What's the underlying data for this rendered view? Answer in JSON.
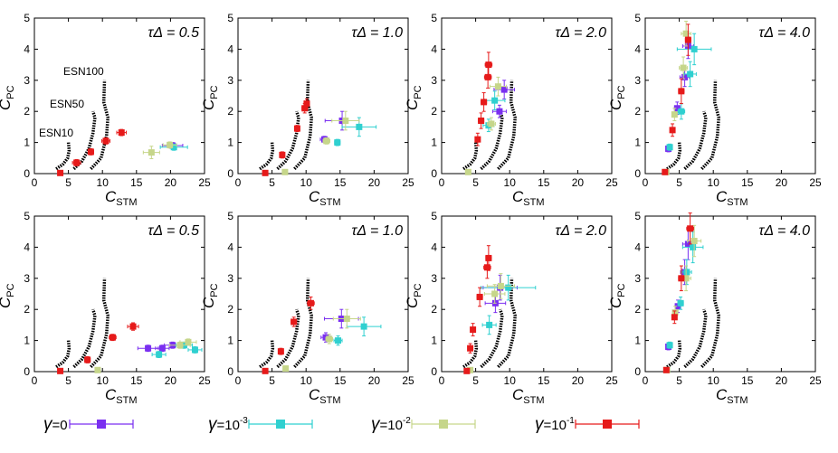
{
  "figure": {
    "x_axis": {
      "main": "C",
      "sub": "STM",
      "range": [
        0,
        25
      ],
      "ticks": [
        "0",
        "5",
        "10",
        "15",
        "20",
        "25"
      ]
    },
    "y_axis": {
      "main": "C",
      "sub": "PC",
      "range": [
        0,
        5
      ],
      "ticks": [
        "0",
        "1",
        "2",
        "3",
        "4",
        "5"
      ]
    },
    "curve_labels": [
      "ESN100",
      "ESN50",
      "ESN10"
    ],
    "panel_labels": [
      "τΔ = 0.5",
      "τΔ = 1.0",
      "τΔ = 2.0",
      "τΔ = 4.0",
      "τΔ = 0.5",
      "τΔ = 1.0",
      "τΔ = 2.0",
      "τΔ = 4.0"
    ],
    "legend": [
      {
        "sym": "γ",
        "text": "=0",
        "sup": "",
        "color": "#7a2ff0"
      },
      {
        "sym": "γ",
        "text": "=10",
        "sup": "-3",
        "color": "#2fd0d0"
      },
      {
        "sym": "γ",
        "text": "=10",
        "sup": "-2",
        "color": "#c6d68a"
      },
      {
        "sym": "γ",
        "text": "=10",
        "sup": "-1",
        "color": "#e61a1a"
      }
    ]
  },
  "chart_data": {
    "type": "scatter",
    "series_colors": [
      "#7a2ff0",
      "#2fd0d0",
      "#c6d68a",
      "#e61a1a"
    ],
    "esn_curves": [
      {
        "name": "ESN10",
        "points": [
          [
            3.2,
            0.15
          ],
          [
            4.2,
            0.3
          ],
          [
            4.9,
            0.5
          ],
          [
            5.1,
            0.75
          ],
          [
            5.0,
            1.0
          ]
        ]
      },
      {
        "name": "ESN50",
        "points": [
          [
            5.8,
            0.15
          ],
          [
            7.0,
            0.4
          ],
          [
            8.0,
            0.8
          ],
          [
            8.6,
            1.3
          ],
          [
            8.9,
            1.8
          ],
          [
            8.6,
            2.0
          ]
        ]
      },
      {
        "name": "ESN100",
        "points": [
          [
            8.3,
            0.15
          ],
          [
            9.8,
            0.5
          ],
          [
            10.6,
            1.2
          ],
          [
            10.8,
            1.8
          ],
          [
            10.2,
            2.3
          ],
          [
            10.3,
            3.0
          ]
        ]
      }
    ],
    "panels": [
      {
        "series": [
          {
            "points": [
              [
                20.3,
                0.9,
                1.5,
                0.1
              ]
            ]
          },
          {
            "points": [
              [
                20.5,
                0.85,
                2.0,
                0.1
              ]
            ]
          },
          {
            "points": [
              [
                17.2,
                0.68,
                1.2,
                0.2
              ],
              [
                19.9,
                0.92,
                1.0,
                0.1
              ]
            ]
          },
          {
            "points": [
              [
                3.8,
                0.02,
                0.3,
                0.02
              ],
              [
                6.2,
                0.35,
                0.6,
                0.1
              ],
              [
                8.3,
                0.7,
                0.4,
                0.1
              ],
              [
                10.5,
                1.05,
                0.6,
                0.1
              ],
              [
                12.8,
                1.32,
                0.7,
                0.1
              ]
            ]
          }
        ]
      },
      {
        "series": [
          {
            "points": [
              [
                15.3,
                1.7,
                2.5,
                0.3
              ],
              [
                12.7,
                1.1,
                0.6,
                0.1
              ]
            ]
          },
          {
            "points": [
              [
                17.8,
                1.5,
                2.5,
                0.3
              ],
              [
                14.6,
                1.0,
                0.4,
                0.1
              ]
            ]
          },
          {
            "points": [
              [
                15.8,
                1.7,
                2.0,
                0.3
              ],
              [
                13.0,
                1.05,
                0.5,
                0.1
              ],
              [
                6.9,
                0.05,
                0.3,
                0.03
              ]
            ]
          },
          {
            "points": [
              [
                4.0,
                0.02,
                0.3,
                0.02
              ],
              [
                6.5,
                0.6,
                0.3,
                0.1
              ],
              [
                8.7,
                1.45,
                0.3,
                0.1
              ],
              [
                9.8,
                2.1,
                0.4,
                0.15
              ],
              [
                10.1,
                2.25,
                0.4,
                0.15
              ]
            ]
          }
        ]
      },
      {
        "series": [
          {
            "points": [
              [
                9.2,
                2.7,
                1.5,
                0.3
              ],
              [
                8.5,
                2.0,
                1.0,
                0.2
              ]
            ]
          },
          {
            "points": [
              [
                7.8,
                2.35,
                1.5,
                0.3
              ],
              [
                6.9,
                1.55,
                0.8,
                0.2
              ]
            ]
          },
          {
            "points": [
              [
                8.3,
                2.8,
                1.2,
                0.3
              ],
              [
                7.3,
                1.6,
                0.6,
                0.2
              ],
              [
                3.9,
                0.05,
                0.2,
                0.03
              ]
            ]
          },
          {
            "points": [
              [
                5.3,
                1.1,
                0.3,
                0.2
              ],
              [
                5.8,
                1.7,
                0.4,
                0.25
              ],
              [
                6.2,
                2.3,
                0.4,
                0.3
              ],
              [
                6.8,
                3.1,
                0.5,
                0.35
              ],
              [
                6.9,
                3.5,
                0.5,
                0.4
              ]
            ]
          }
        ]
      },
      {
        "series": [
          {
            "points": [
              [
                6.3,
                4.1,
                0.8,
                0.4
              ],
              [
                5.8,
                3.1,
                0.7,
                0.3
              ],
              [
                4.7,
                2.1,
                0.4,
                0.2
              ],
              [
                3.4,
                0.8,
                0.2,
                0.1
              ]
            ]
          },
          {
            "points": [
              [
                7.2,
                4.0,
                2.5,
                0.5
              ],
              [
                6.6,
                3.2,
                0.9,
                0.4
              ],
              [
                5.3,
                2.0,
                0.5,
                0.25
              ],
              [
                3.6,
                0.85,
                0.3,
                0.1
              ]
            ]
          },
          {
            "points": [
              [
                6.0,
                4.5,
                0.7,
                0.4
              ],
              [
                5.6,
                3.4,
                0.6,
                0.35
              ],
              [
                4.3,
                1.9,
                0.3,
                0.2
              ],
              [
                3.1,
                0.05,
                0.2,
                0.03
              ]
            ]
          },
          {
            "points": [
              [
                6.3,
                4.3,
                0.4,
                0.5
              ],
              [
                5.3,
                2.65,
                0.4,
                0.4
              ],
              [
                4.0,
                1.4,
                0.3,
                0.2
              ],
              [
                2.9,
                0.05,
                0.2,
                0.03
              ]
            ]
          }
        ]
      },
      {
        "series": [
          {
            "points": [
              [
                16.7,
                0.75,
                1.5,
                0.1
              ],
              [
                18.8,
                0.75,
                1.0,
                0.1
              ],
              [
                20.3,
                0.85,
                1.2,
                0.1
              ]
            ]
          },
          {
            "points": [
              [
                18.3,
                0.55,
                1.0,
                0.1
              ],
              [
                22.0,
                0.85,
                1.2,
                0.1
              ],
              [
                23.6,
                0.7,
                1.0,
                0.1
              ]
            ]
          },
          {
            "points": [
              [
                21.4,
                0.85,
                1.5,
                0.1
              ],
              [
                22.6,
                0.95,
                1.2,
                0.1
              ],
              [
                9.3,
                0.05,
                0.3,
                0.03
              ]
            ]
          },
          {
            "points": [
              [
                3.8,
                0.02,
                0.3,
                0.02
              ],
              [
                7.8,
                0.38,
                0.4,
                0.1
              ],
              [
                11.5,
                1.1,
                0.5,
                0.1
              ],
              [
                14.5,
                1.45,
                0.8,
                0.12
              ]
            ]
          }
        ]
      },
      {
        "series": [
          {
            "points": [
              [
                15.2,
                1.7,
                2.5,
                0.3
              ],
              [
                12.9,
                1.1,
                0.7,
                0.15
              ]
            ]
          },
          {
            "points": [
              [
                18.5,
                1.45,
                2.5,
                0.3
              ],
              [
                14.7,
                1.0,
                0.6,
                0.15
              ]
            ]
          },
          {
            "points": [
              [
                16.0,
                1.7,
                2.0,
                0.3
              ],
              [
                13.4,
                1.05,
                0.5,
                0.15
              ],
              [
                7.0,
                0.1,
                0.3,
                0.05
              ]
            ]
          },
          {
            "points": [
              [
                4.0,
                0.02,
                0.3,
                0.02
              ],
              [
                6.3,
                0.65,
                0.3,
                0.1
              ],
              [
                8.2,
                1.6,
                0.4,
                0.15
              ],
              [
                10.7,
                2.2,
                0.5,
                0.2
              ]
            ]
          }
        ]
      },
      {
        "series": [
          {
            "points": [
              [
                8.6,
                2.7,
                2.5,
                0.4
              ],
              [
                7.9,
                2.2,
                1.5,
                0.3
              ]
            ]
          },
          {
            "points": [
              [
                9.8,
                2.7,
                4.0,
                0.4
              ],
              [
                7.0,
                1.5,
                1.0,
                0.3
              ]
            ]
          },
          {
            "points": [
              [
                8.7,
                2.75,
                2.0,
                0.4
              ],
              [
                7.8,
                2.5,
                1.5,
                0.3
              ],
              [
                4.2,
                0.05,
                0.2,
                0.05
              ]
            ]
          },
          {
            "points": [
              [
                3.7,
                0.02,
                0.2,
                0.02
              ],
              [
                4.2,
                0.75,
                0.3,
                0.15
              ],
              [
                4.6,
                1.35,
                0.3,
                0.2
              ],
              [
                5.6,
                2.4,
                0.4,
                0.3
              ],
              [
                6.7,
                3.35,
                0.5,
                0.35
              ],
              [
                6.9,
                3.65,
                0.4,
                0.4
              ]
            ]
          }
        ]
      },
      {
        "series": [
          {
            "points": [
              [
                6.3,
                4.1,
                0.8,
                0.5
              ],
              [
                5.8,
                3.2,
                0.6,
                0.4
              ],
              [
                4.8,
                2.1,
                0.4,
                0.2
              ],
              [
                3.4,
                0.8,
                0.2,
                0.1
              ]
            ]
          },
          {
            "points": [
              [
                7.0,
                4.0,
                1.5,
                0.5
              ],
              [
                6.1,
                3.2,
                0.7,
                0.4
              ],
              [
                5.2,
                2.2,
                0.4,
                0.2
              ],
              [
                3.6,
                0.85,
                0.3,
                0.1
              ]
            ]
          },
          {
            "points": [
              [
                7.2,
                4.2,
                1.0,
                0.5
              ],
              [
                6.0,
                3.0,
                0.7,
                0.4
              ],
              [
                4.4,
                1.9,
                0.3,
                0.2
              ],
              [
                3.2,
                0.05,
                0.2,
                0.03
              ]
            ]
          },
          {
            "points": [
              [
                6.6,
                4.6,
                0.5,
                0.5
              ],
              [
                5.3,
                3.0,
                0.4,
                0.4
              ],
              [
                4.3,
                1.75,
                0.3,
                0.2
              ],
              [
                3.1,
                0.05,
                0.2,
                0.03
              ]
            ]
          }
        ]
      }
    ]
  }
}
